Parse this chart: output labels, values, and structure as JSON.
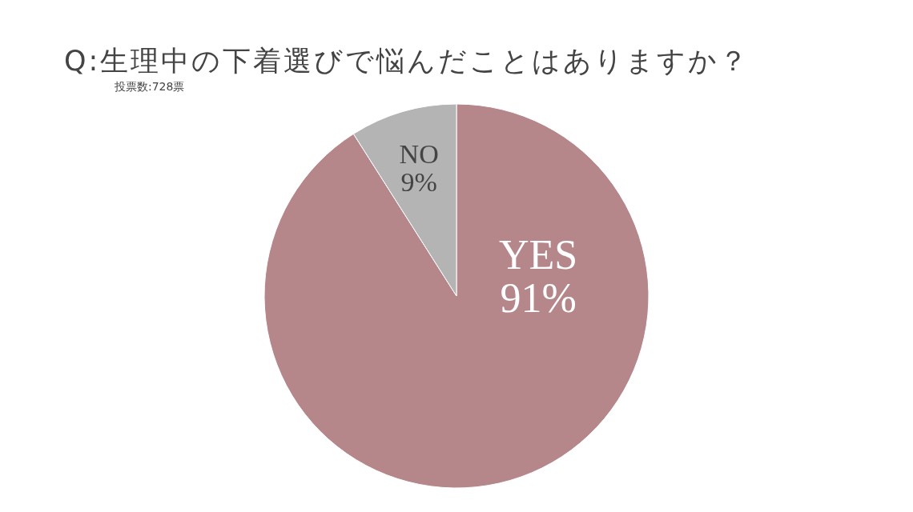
{
  "chart_data": {
    "type": "pie",
    "title": "Q:生理中の下着選びで悩んだことはありますか？",
    "subtitle": "投票数:728票",
    "categories": [
      "YES",
      "NO"
    ],
    "values": [
      91,
      9
    ],
    "colors": [
      "#b5868a",
      "#b4b4b4"
    ],
    "value_labels": [
      "91%",
      "9%"
    ],
    "legend": false
  }
}
